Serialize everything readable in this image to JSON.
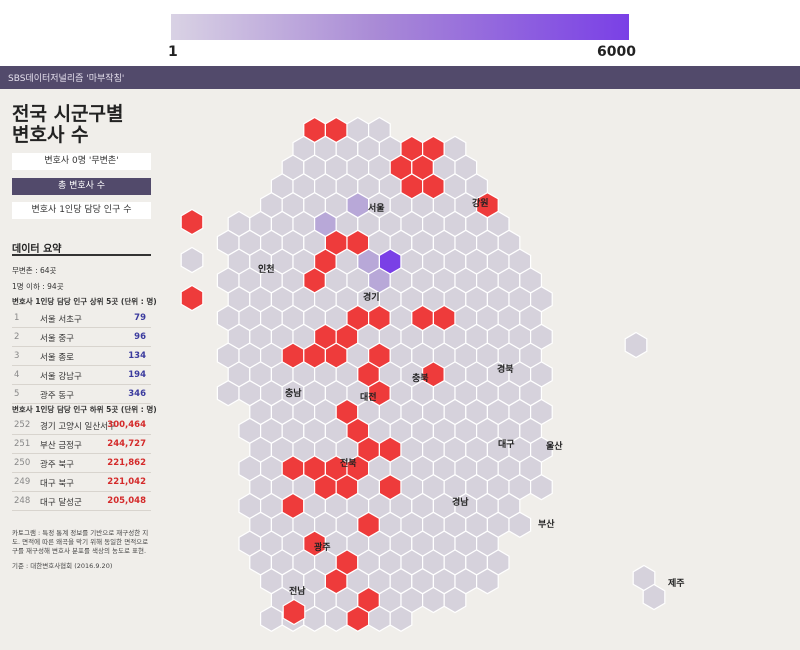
{
  "legend": {
    "min_label": "1",
    "max_label": "6000",
    "color_low": "#d9d2e4",
    "color_high": "#7a40e6"
  },
  "header": {
    "title": "SBS데이터저널리즘 '마부작침'"
  },
  "page": {
    "title_line1": "전국 시군구별",
    "title_line2": "변호사 수"
  },
  "modes": [
    {
      "label": "변호사 0명 '무변촌'",
      "active": false
    },
    {
      "label": "총 변호사 수",
      "active": true
    },
    {
      "label": "변호사 1인당 담당 인구 수",
      "active": false
    }
  ],
  "summary": {
    "title": "데이터 요약",
    "no_lawyer": "무변촌 : 64곳",
    "one_or_less": "1명 이하 : 94곳",
    "top_heading": "변호사 1인당 담당 인구 상위 5곳 (단위 : 명)",
    "top": [
      {
        "rank": "1",
        "name": "서울 서초구",
        "value": "79"
      },
      {
        "rank": "2",
        "name": "서울 중구",
        "value": "96"
      },
      {
        "rank": "3",
        "name": "서울 종로",
        "value": "134"
      },
      {
        "rank": "4",
        "name": "서울 강남구",
        "value": "194"
      },
      {
        "rank": "5",
        "name": "광주 동구",
        "value": "346"
      }
    ],
    "bottom_heading": "변호사 1인당 담당 인구 하위 5곳 (단위 : 명)",
    "bottom": [
      {
        "rank": "252",
        "name": "경기 고양시 일산서구",
        "value": "300,464"
      },
      {
        "rank": "251",
        "name": "부산 금정구",
        "value": "244,727"
      },
      {
        "rank": "250",
        "name": "광주 북구",
        "value": "221,862"
      },
      {
        "rank": "249",
        "name": "대구 북구",
        "value": "221,042"
      },
      {
        "rank": "248",
        "name": "대구 달성군",
        "value": "205,048"
      }
    ]
  },
  "note": "카토그램 : 특정 통계 정보를 기반으로 재구성한 지도. 면적에 따른 왜곡을 막기 위해 동일한 면적으로 구를 재구성해 변호사 분포를 색상의 농도로 표현.",
  "source": "기준 : 대한변호사협회 (2016.9.20)",
  "colors": {
    "zero": "#ee3b3b",
    "low": "#d6d2dc",
    "mid": "#b8a8d8",
    "high": "#8a5ce0",
    "top": "#7a40e6",
    "stroke": "#ffffff"
  },
  "regions": {
    "seoul": "서울",
    "gangwon": "강원",
    "incheon": "인천",
    "gyeonggi": "경기",
    "chungbuk": "충북",
    "chungnam": "충남",
    "daejeon": "대전",
    "gyeongbuk": "경북",
    "daegu": "대구",
    "ulsan": "울산",
    "jeonbuk": "전북",
    "gyeongnam": "경남",
    "busan": "부산",
    "gwangju": "광주",
    "jeonnam": "전남",
    "jeju": "제주"
  }
}
